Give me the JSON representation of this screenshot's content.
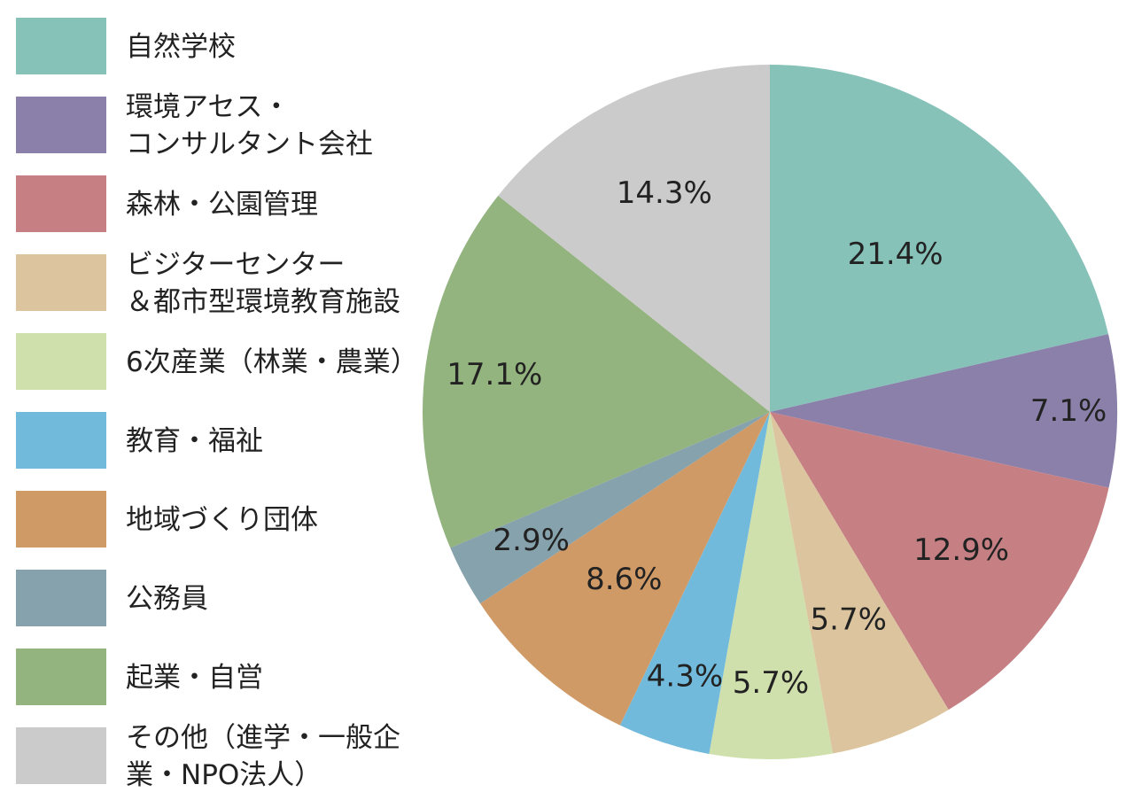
{
  "chart_data": {
    "type": "pie",
    "title": "",
    "start_angle_deg": 0,
    "direction": "clockwise",
    "legend_position": "left",
    "slices": [
      {
        "label": "自然学校",
        "value": 21.4,
        "display": "21.4%",
        "color": "#87c2b9"
      },
      {
        "label": "環境アセス・\nコンサルタント会社",
        "value": 7.1,
        "display": "7.1%",
        "color": "#8b80aa"
      },
      {
        "label": "森林・公園管理",
        "value": 12.9,
        "display": "12.9%",
        "color": "#c68084"
      },
      {
        "label": "ビジターセンター\n＆都市型環境教育施設",
        "value": 5.7,
        "display": "5.7%",
        "color": "#dcc59e"
      },
      {
        "label": "6次産業（林業・農業）",
        "value": 5.7,
        "display": "5.7%",
        "color": "#cfe0ac"
      },
      {
        "label": "教育・福祉",
        "value": 4.3,
        "display": "4.3%",
        "color": "#72badc"
      },
      {
        "label": "地域づくり団体",
        "value": 8.6,
        "display": "8.6%",
        "color": "#d09a67"
      },
      {
        "label": "公務員",
        "value": 2.9,
        "display": "2.9%",
        "color": "#86a2ac"
      },
      {
        "label": "起業・自営",
        "value": 17.1,
        "display": "17.1%",
        "color": "#93b37f"
      },
      {
        "label": "その他（進学・一般企業・NPO法人）",
        "value": 14.3,
        "display": "14.3%",
        "color": "#cbcbcb"
      }
    ]
  }
}
